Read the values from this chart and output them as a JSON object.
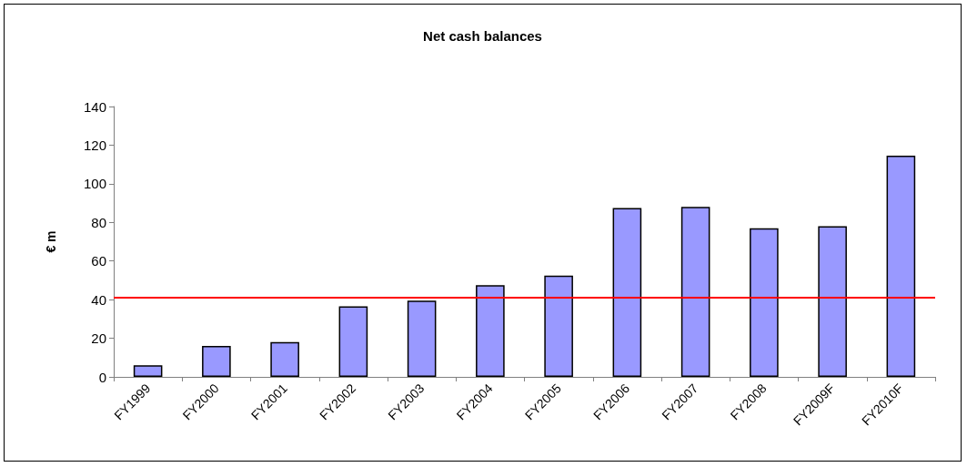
{
  "chart_data": {
    "type": "bar",
    "title": "Net cash balances",
    "ylabel": "€ m",
    "categories": [
      "FY1999",
      "FY2000",
      "FY2001",
      "FY2002",
      "FY2003",
      "FY2004",
      "FY2005",
      "FY2006",
      "FY2007",
      "FY2008",
      "FY2009F",
      "FY2010F"
    ],
    "values": [
      6,
      16,
      18,
      36.5,
      39.5,
      47.5,
      52.5,
      87.5,
      88,
      77,
      78,
      114.5
    ],
    "color": "#9999ff",
    "ylim": [
      0,
      140
    ],
    "yticks": [
      0,
      20,
      40,
      60,
      80,
      100,
      120,
      140
    ],
    "grid": false,
    "ref_lines": [
      {
        "axis": "y",
        "value": 41,
        "color": "#ff0000"
      }
    ]
  }
}
